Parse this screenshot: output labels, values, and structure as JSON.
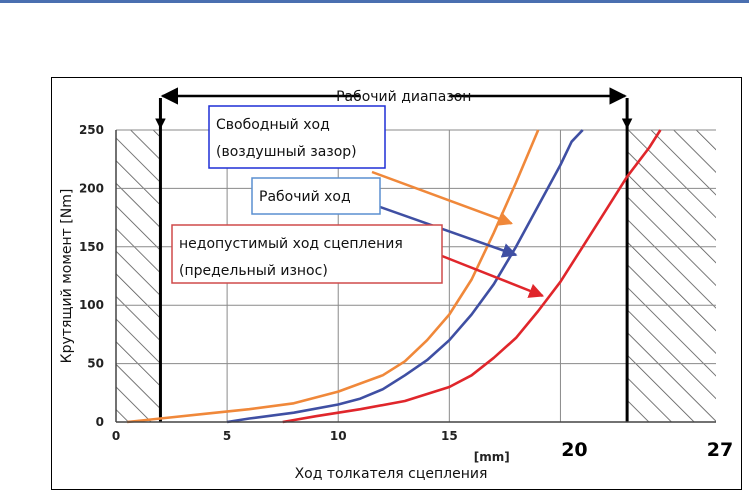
{
  "chart_data": {
    "type": "line",
    "xlabel": "Ход толкателя сцепления",
    "x_unit": "[mm]",
    "ylabel": "Крутящий момент [Nm]",
    "xlim": [
      0,
      27
    ],
    "ylim": [
      0,
      250
    ],
    "x_ticks": [
      "0",
      "5",
      "10",
      "15"
    ],
    "x_ticks_bold": [
      "20",
      "27"
    ],
    "y_ticks": [
      "0",
      "50",
      "100",
      "150",
      "200",
      "250"
    ],
    "grid": true,
    "working_range": {
      "label": "Рабочий диапазон",
      "from": 2,
      "to": 23
    },
    "series": [
      {
        "name": "Свободный ход (воздушный зазор)",
        "color": "#f0883a",
        "points": [
          [
            0.5,
            0
          ],
          [
            2,
            3
          ],
          [
            4,
            7
          ],
          [
            6,
            11
          ],
          [
            8,
            16
          ],
          [
            10,
            26
          ],
          [
            12,
            40
          ],
          [
            13,
            52
          ],
          [
            14,
            70
          ],
          [
            15,
            92
          ],
          [
            16,
            122
          ],
          [
            17,
            162
          ],
          [
            18,
            205
          ],
          [
            19,
            250
          ]
        ]
      },
      {
        "name": "Рабочий ход",
        "color": "#3f4fa3",
        "points": [
          [
            5,
            0
          ],
          [
            6,
            3
          ],
          [
            8,
            8
          ],
          [
            10,
            15
          ],
          [
            11,
            20
          ],
          [
            12,
            28
          ],
          [
            13,
            40
          ],
          [
            14,
            53
          ],
          [
            15,
            70
          ],
          [
            16,
            92
          ],
          [
            17,
            118
          ],
          [
            18,
            150
          ],
          [
            19,
            185
          ],
          [
            20,
            220
          ],
          [
            20.5,
            240
          ],
          [
            21,
            250
          ]
        ]
      },
      {
        "name": "недопустимый ход сцепления (предельный износ)",
        "color": "#e0262b",
        "points": [
          [
            7.5,
            0
          ],
          [
            9,
            5
          ],
          [
            11,
            11
          ],
          [
            13,
            18
          ],
          [
            14,
            24
          ],
          [
            15,
            30
          ],
          [
            16,
            40
          ],
          [
            17,
            55
          ],
          [
            18,
            72
          ],
          [
            19,
            95
          ],
          [
            20,
            120
          ],
          [
            21,
            150
          ],
          [
            22,
            180
          ],
          [
            23,
            210
          ],
          [
            24,
            235
          ],
          [
            24.5,
            250
          ]
        ]
      }
    ],
    "annotations": [
      {
        "lines": [
          "Свободный ход",
          "(воздушный зазор)"
        ],
        "border": "#1f2fd6",
        "target": [
          17.8,
          170
        ],
        "arrow": "#f0883a"
      },
      {
        "lines": [
          "Рабочий ход"
        ],
        "border": "#5a8fd0",
        "target": [
          18,
          143
        ],
        "arrow": "#3f4fa3"
      },
      {
        "lines": [
          "недопустимый ход сцепления",
          "(предельный износ)"
        ],
        "border": "#cf4a4a",
        "target": [
          19.2,
          108
        ],
        "arrow": "#e0262b"
      }
    ]
  }
}
